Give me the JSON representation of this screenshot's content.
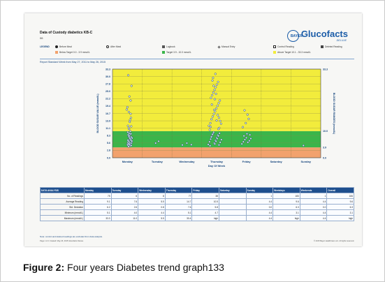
{
  "report": {
    "title": "Data of Custody diabetics KB-C",
    "id_code": "06",
    "range_line": "Report Standard Week from May 27, 2011 to May 26, 2015"
  },
  "logo": {
    "brand": "Glucofacts",
    "tagline": "DELUXE",
    "mark_text": "BAYER"
  },
  "legend": {
    "heading": "LEGEND",
    "items": [
      {
        "label": "Before Meal",
        "icon": "apple-icon"
      },
      {
        "label": "After Meal",
        "icon": "apple-core-icon"
      },
      {
        "label": "Logbook",
        "icon": "logbook-icon"
      },
      {
        "label": "Manual Entry",
        "icon": "pencil-icon"
      },
      {
        "label": "Control Reading",
        "icon": "check-icon"
      },
      {
        "label": "Deleted Reading",
        "icon": "x-icon"
      }
    ],
    "ranges": [
      {
        "label": "Below Target 0.0 - 3.9 mmol/L",
        "color": "#f2a26d"
      },
      {
        "label": "Target 3.9 - 10.0 mmol/L",
        "color": "#3bb54a"
      },
      {
        "label": "Above Target 10.1 - 33.3 mmol/L",
        "color": "#f2ec3c"
      }
    ]
  },
  "chart_data": {
    "type": "scatter",
    "xlabel": "Day Of Week",
    "ylabel": "BLOOD SUGAR VALUE (mmol/L)",
    "ylabel_right": "BLOOD SUGAR RANGES (mmol/L)",
    "categories": [
      "Monday",
      "Tuesday",
      "Wednesday",
      "Thursday",
      "Friday",
      "Saturday",
      "Sunday"
    ],
    "yticks": [
      "33.3",
      "30.0",
      "27.8",
      "25.0",
      "22.2",
      "19.4",
      "16.7",
      "13.9",
      "11.1",
      "8.3",
      "5.6",
      "2.8",
      "0.0"
    ],
    "ylim": [
      0,
      33.3
    ],
    "right_ticks": [
      "33.3",
      "10.0",
      "3.9",
      "0.0"
    ],
    "bands": [
      {
        "from": 0,
        "to": 3.9,
        "color": "#f2a26d"
      },
      {
        "from": 3.9,
        "to": 10.0,
        "color": "#3bb54a"
      },
      {
        "from": 10.0,
        "to": 33.3,
        "color": "#f2ec3c"
      }
    ],
    "series": [
      {
        "x": [
          0.0,
          0.02,
          0.05,
          0.08,
          0.11,
          0.14,
          0.04,
          0.07,
          0.12,
          0.01,
          0.09,
          0.13,
          0.03,
          0.06,
          0.1,
          0.15,
          0.02,
          0.08,
          0.12,
          0.05,
          0.0,
          0.11,
          0.07,
          0.14,
          0.03,
          0.09,
          0.06,
          0.13,
          0.01,
          0.1,
          0.04,
          0.16,
          0.08,
          0.12,
          0.02,
          0.07,
          0.05,
          0.11,
          0.09,
          0.03,
          -0.02,
          0.15,
          0.06,
          0.13,
          0.1
        ],
        "y": [
          5.0,
          5.8,
          6.2,
          7.0,
          6.5,
          5.5,
          8.0,
          7.6,
          6.8,
          4.8,
          5.2,
          7.8,
          8.6,
          9.2,
          4.5,
          6.0,
          12.0,
          13.5,
          15.0,
          17.2,
          19.0,
          21.5,
          23.0,
          27.0,
          31.0,
          14.2,
          10.8,
          11.8,
          9.6,
          8.8,
          4.2,
          7.4,
          5.6,
          9.0,
          6.6,
          4.9,
          11.2,
          16.5,
          7.2,
          5.3,
          18.1,
          6.3,
          8.2,
          4.6,
          9.9
        ]
      },
      {
        "x": [
          0.95,
          1.05
        ],
        "y": [
          5.5,
          6.2
        ]
      },
      {
        "x": [
          1.85,
          2.0,
          2.15
        ],
        "y": [
          4.8,
          5.5,
          4.9
        ]
      },
      {
        "x": [
          2.72,
          2.76,
          2.8,
          2.84,
          2.88,
          2.92,
          2.96,
          3.0,
          3.04,
          3.08,
          3.12,
          3.16,
          2.78,
          2.82,
          2.86,
          2.9,
          2.94,
          2.98,
          3.02,
          3.06,
          3.1,
          2.74,
          2.79,
          2.83,
          2.87,
          2.91,
          2.95,
          2.99,
          3.03,
          3.07,
          3.11,
          3.15,
          2.81,
          2.85,
          2.89,
          2.93,
          2.97,
          3.01,
          3.05,
          3.09,
          2.77,
          2.88,
          2.96,
          3.04,
          3.12,
          2.84,
          2.92,
          3.0,
          3.08,
          2.8,
          2.9,
          2.98,
          3.06,
          2.86,
          2.94
        ],
        "y": [
          5.0,
          6.0,
          7.0,
          8.0,
          9.0,
          5.5,
          6.5,
          7.5,
          8.5,
          4.8,
          5.8,
          6.8,
          4.5,
          7.8,
          8.8,
          9.6,
          5.2,
          6.2,
          7.2,
          8.2,
          9.2,
          12.0,
          13.0,
          14.5,
          15.5,
          16.5,
          17.5,
          18.5,
          19.5,
          20.5,
          21.5,
          12.8,
          22.5,
          23.5,
          24.5,
          25.5,
          26.5,
          27.5,
          28.5,
          11.2,
          10.5,
          30.0,
          31.5,
          16.0,
          13.8,
          20.0,
          18.0,
          14.0,
          15.0,
          11.6,
          27.0,
          24.0,
          10.8,
          29.0,
          22.0
        ]
      },
      {
        "x": [
          3.85,
          3.9,
          3.95,
          4.0,
          4.05,
          4.1,
          4.15,
          3.92,
          4.02,
          4.12,
          3.88,
          3.98,
          4.08,
          4.04,
          3.94
        ],
        "y": [
          5.2,
          6.0,
          6.8,
          7.5,
          5.8,
          6.4,
          7.2,
          8.2,
          9.0,
          8.6,
          11.5,
          13.0,
          14.6,
          16.2,
          17.8
        ]
      },
      {
        "x": [
          5.92
        ],
        "y": [
          4.6
        ]
      },
      {
        "x": [],
        "y": []
      }
    ]
  },
  "analysis": {
    "title": "DATA ANALYSIS",
    "columns": [
      "Monday",
      "Tuesday",
      "Wednesday",
      "Thursday",
      "Friday",
      "Saturday",
      "Sunday",
      "Weekdays",
      "Weekends",
      "Overall"
    ],
    "rows": [
      {
        "label": "No. of Readings",
        "values": [
          "75",
          "6",
          "8",
          "77",
          "38",
          "",
          "1",
          "183",
          "1",
          "184"
        ]
      },
      {
        "label": "Average Reading",
        "values": [
          "9.1",
          "7.6",
          "5.5",
          "14.7",
          "10.5",
          "",
          "4.4",
          "9.6",
          "4.4",
          "9.6"
        ]
      },
      {
        "label": "Std. Deviation",
        "values": [
          "6.2",
          "2.6",
          "0.8",
          "7.6",
          "5.8",
          "",
          "0.0",
          "6.3",
          "0.0",
          "6.3"
        ]
      },
      {
        "label": "Minimum (mmol/L)",
        "values": [
          "5.1",
          "4.0",
          "4.4",
          "5.1",
          "4.7",
          "",
          "4.4",
          "3.1",
          "4.4",
          "3.1"
        ]
      },
      {
        "label": "Maximum (mmol/L)",
        "values": [
          "33.3",
          "11.0",
          "5.5",
          "30.4",
          "high",
          "",
          "4.4",
          "high",
          "4.4",
          "high"
        ]
      }
    ],
    "note": "Note: control and deleted readings are excluded from data analysis."
  },
  "footer": {
    "left": "Page 1 of 1   Created: May 26, 2015   Glucofacts Deluxe",
    "right": "© 2015 Bayer HealthCare LLC. All rights reserved."
  },
  "caption": {
    "figure": "Figure 2:",
    "text": "Four years Diabetes trend graph133"
  }
}
